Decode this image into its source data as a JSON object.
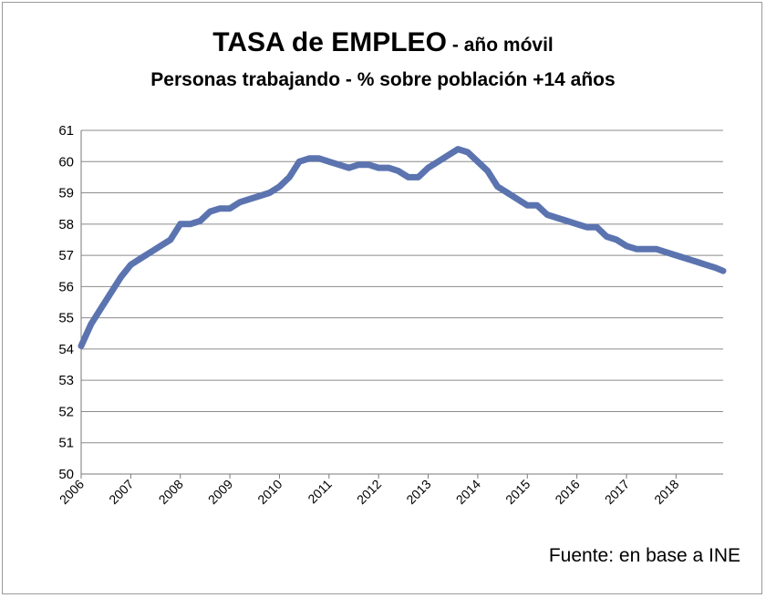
{
  "chart_data": {
    "type": "line",
    "title": "TASA de EMPLEO",
    "title_suffix": "- año móvil",
    "subtitle": "Personas trabajando - % sobre población +14 años",
    "source": "Fuente: en base a INE",
    "xlabel": "",
    "ylabel": "",
    "ylim": [
      50,
      61
    ],
    "xlim": [
      2006,
      2018.95
    ],
    "y_ticks": [
      "50",
      "51",
      "52",
      "53",
      "54",
      "55",
      "56",
      "57",
      "58",
      "59",
      "60",
      "61"
    ],
    "x_ticks": [
      "2006",
      "2007",
      "2008",
      "2009",
      "2010",
      "2011",
      "2012",
      "2013",
      "2014",
      "2015",
      "2016",
      "2017",
      "2018"
    ],
    "grid": true,
    "legend": "none",
    "line_color": "#5b74b0",
    "series": [
      {
        "x": [
          2006.0,
          2006.2,
          2006.4,
          2006.6,
          2006.8,
          2007.0,
          2007.2,
          2007.4,
          2007.6,
          2007.8,
          2008.0,
          2008.2,
          2008.4,
          2008.6,
          2008.8,
          2009.0,
          2009.2,
          2009.4,
          2009.6,
          2009.8,
          2010.0,
          2010.2,
          2010.4,
          2010.6,
          2010.8,
          2011.0,
          2011.2,
          2011.4,
          2011.6,
          2011.8,
          2012.0,
          2012.2,
          2012.4,
          2012.6,
          2012.8,
          2013.0,
          2013.2,
          2013.4,
          2013.6,
          2013.8,
          2014.0,
          2014.2,
          2014.4,
          2014.6,
          2014.8,
          2015.0,
          2015.2,
          2015.4,
          2015.6,
          2015.8,
          2016.0,
          2016.2,
          2016.4,
          2016.6,
          2016.8,
          2017.0,
          2017.2,
          2017.4,
          2017.6,
          2017.8,
          2018.0,
          2018.2,
          2018.4,
          2018.6,
          2018.8,
          2018.95
        ],
        "values": [
          54.1,
          54.8,
          55.3,
          55.8,
          56.3,
          56.7,
          56.9,
          57.1,
          57.3,
          57.5,
          58.0,
          58.0,
          58.1,
          58.4,
          58.5,
          58.5,
          58.7,
          58.8,
          58.9,
          59.0,
          59.2,
          59.5,
          60.0,
          60.1,
          60.1,
          60.0,
          59.9,
          59.8,
          59.9,
          59.9,
          59.8,
          59.8,
          59.7,
          59.5,
          59.5,
          59.8,
          60.0,
          60.2,
          60.4,
          60.3,
          60.0,
          59.7,
          59.2,
          59.0,
          58.8,
          58.6,
          58.6,
          58.3,
          58.2,
          58.1,
          58.0,
          57.9,
          57.9,
          57.6,
          57.5,
          57.3,
          57.2,
          57.2,
          57.2,
          57.1,
          57.0,
          56.9,
          56.8,
          56.7,
          56.6,
          56.5
        ]
      }
    ]
  }
}
